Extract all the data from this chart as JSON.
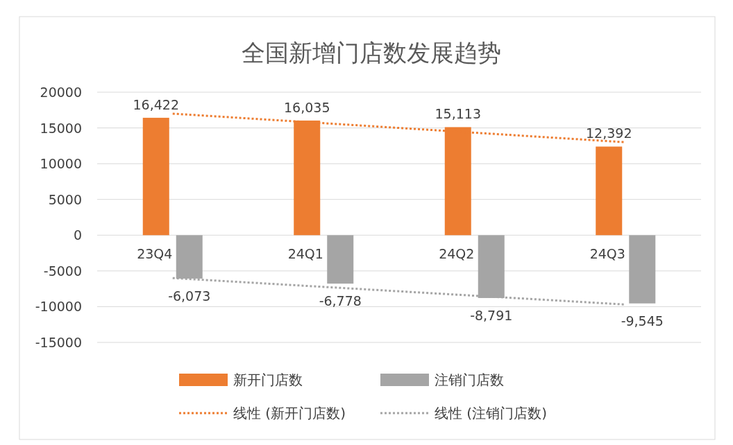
{
  "chart_data": {
    "type": "bar",
    "title": "全国新增门店数发展趋势",
    "categories": [
      "23Q4",
      "24Q1",
      "24Q2",
      "24Q3"
    ],
    "series": [
      {
        "name": "新开门店数",
        "color": "#ed7d31",
        "values": [
          16422,
          16035,
          15113,
          12392
        ],
        "value_labels": [
          "16,422",
          "16,035",
          "15,113",
          "12,392"
        ]
      },
      {
        "name": "注销门店数",
        "color": "#a5a5a5",
        "values": [
          -6073,
          -6778,
          -8791,
          -9545
        ],
        "value_labels": [
          "-6,073",
          "-6,778",
          "-8,791",
          "-9,545"
        ]
      },
      {
        "name": "线性 (新开门店数)",
        "type": "line",
        "color": "#ed7d31",
        "line_style": "dotted",
        "x": [
          "23Q4",
          "24Q3"
        ],
        "values": [
          17000,
          13000
        ]
      },
      {
        "name": "线性 (注销门店数)",
        "type": "line",
        "color": "#a5a5a5",
        "line_style": "dotted",
        "x": [
          "23Q4",
          "24Q3"
        ],
        "values": [
          -6000,
          -9700
        ]
      }
    ],
    "ylim": [
      -15000,
      20000
    ],
    "yticks": [
      -15000,
      -10000,
      -5000,
      0,
      5000,
      10000,
      15000,
      20000
    ],
    "grid": "y",
    "legend": "bottom"
  }
}
